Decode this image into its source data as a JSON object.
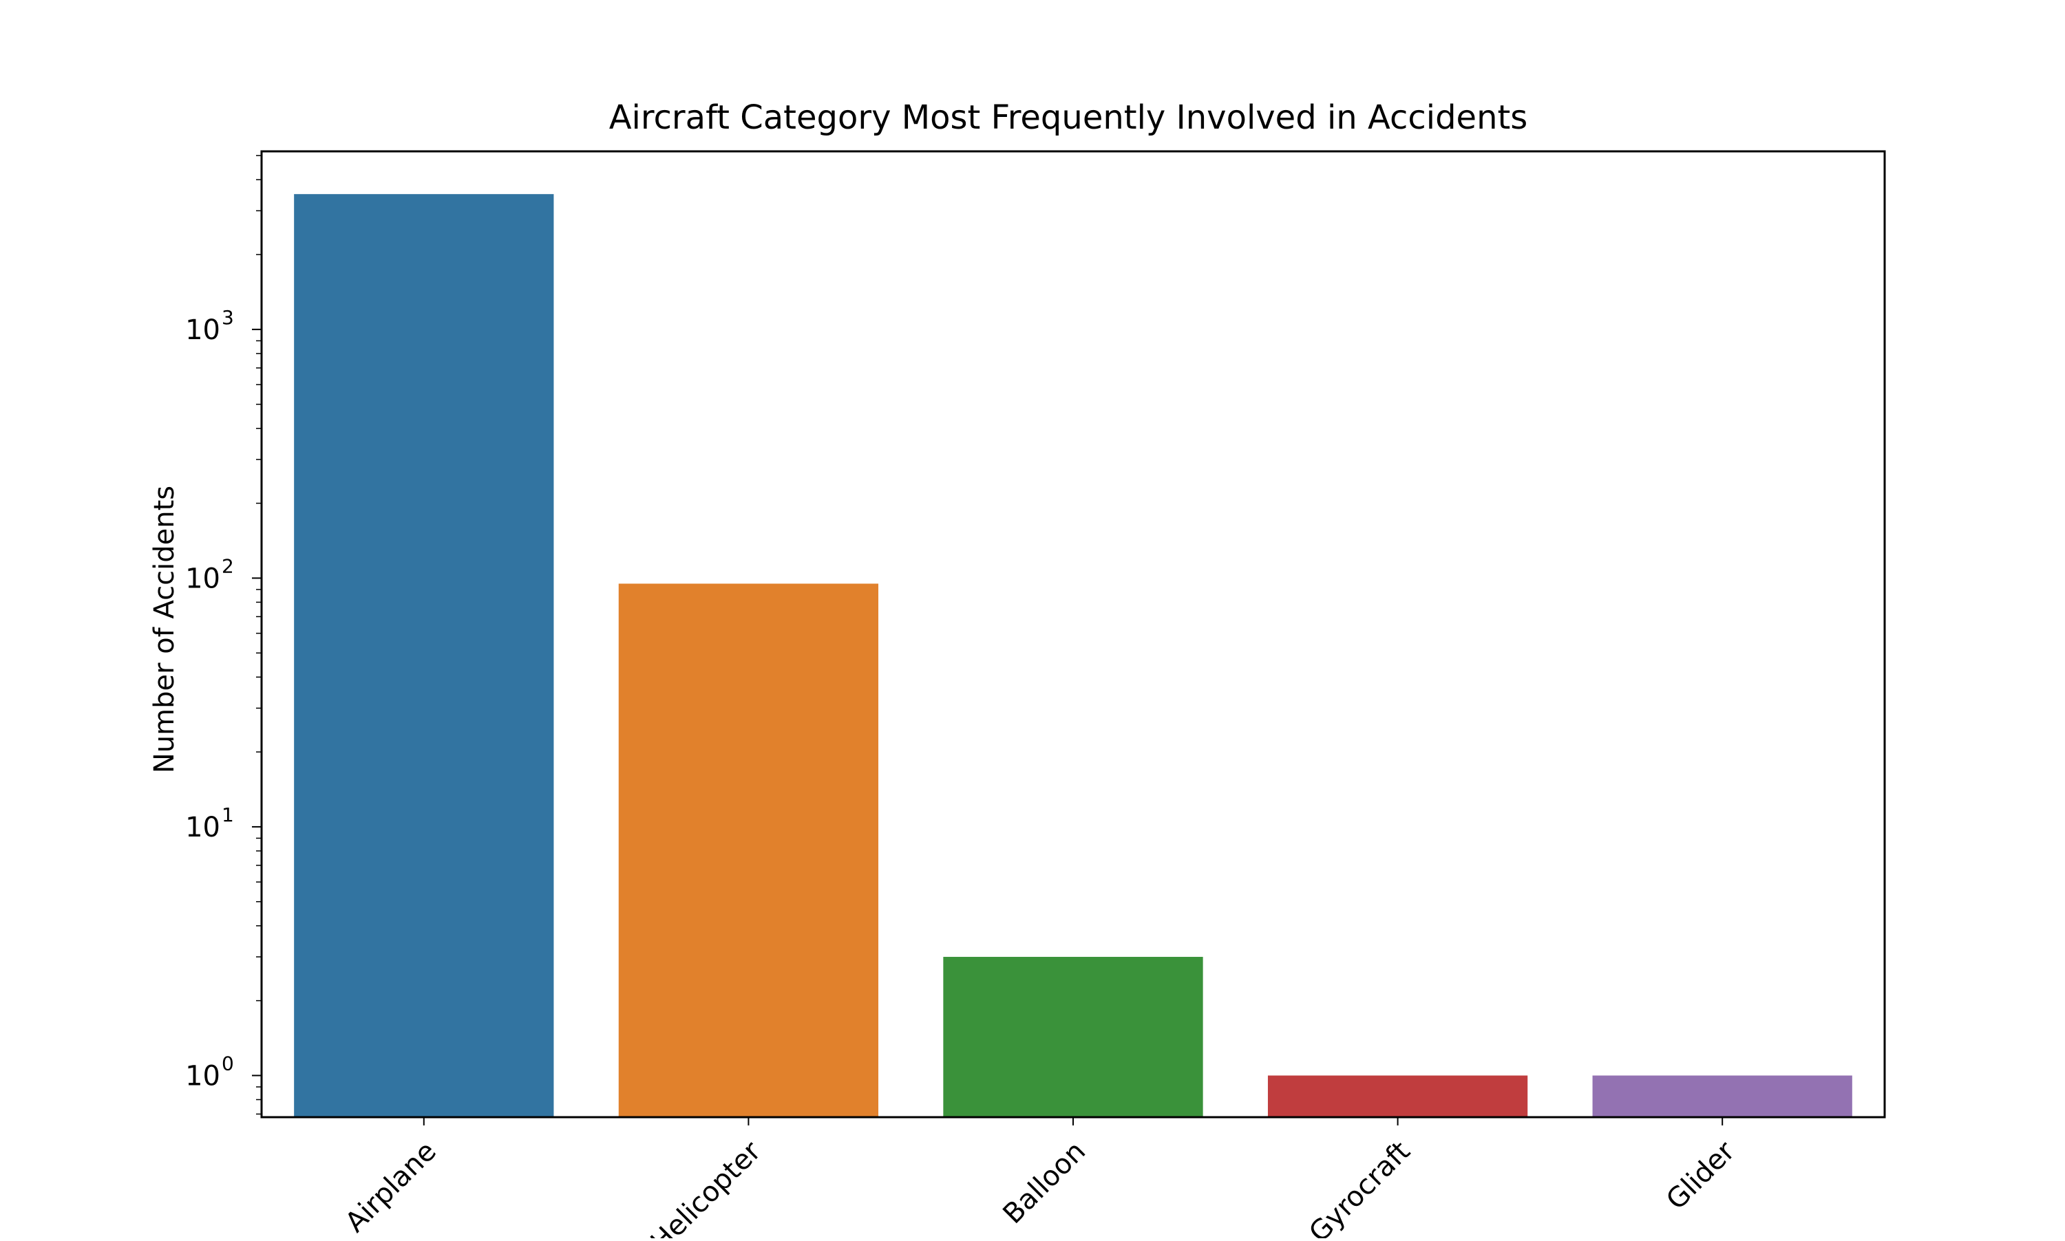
{
  "chart_data": {
    "type": "bar",
    "title": "Aircraft Category Most Frequently Involved in Accidents",
    "xlabel": "",
    "ylabel": "Number of Accidents",
    "yscale": "log",
    "ylim": [
      0.68,
      5200
    ],
    "yticks": [
      {
        "value": 1,
        "base": "10",
        "exp": "0"
      },
      {
        "value": 10,
        "base": "10",
        "exp": "1"
      },
      {
        "value": 100,
        "base": "10",
        "exp": "2"
      },
      {
        "value": 1000,
        "base": "10",
        "exp": "3"
      }
    ],
    "categories": [
      "Airplane",
      "Helicopter",
      "Balloon",
      "Gyrocraft",
      "Glider"
    ],
    "values": [
      3500,
      95,
      3,
      1,
      1
    ],
    "colors": [
      "#3274a1",
      "#e1812c",
      "#3a923a",
      "#c03d3e",
      "#9372b2"
    ],
    "grid": false,
    "legend": "none"
  }
}
